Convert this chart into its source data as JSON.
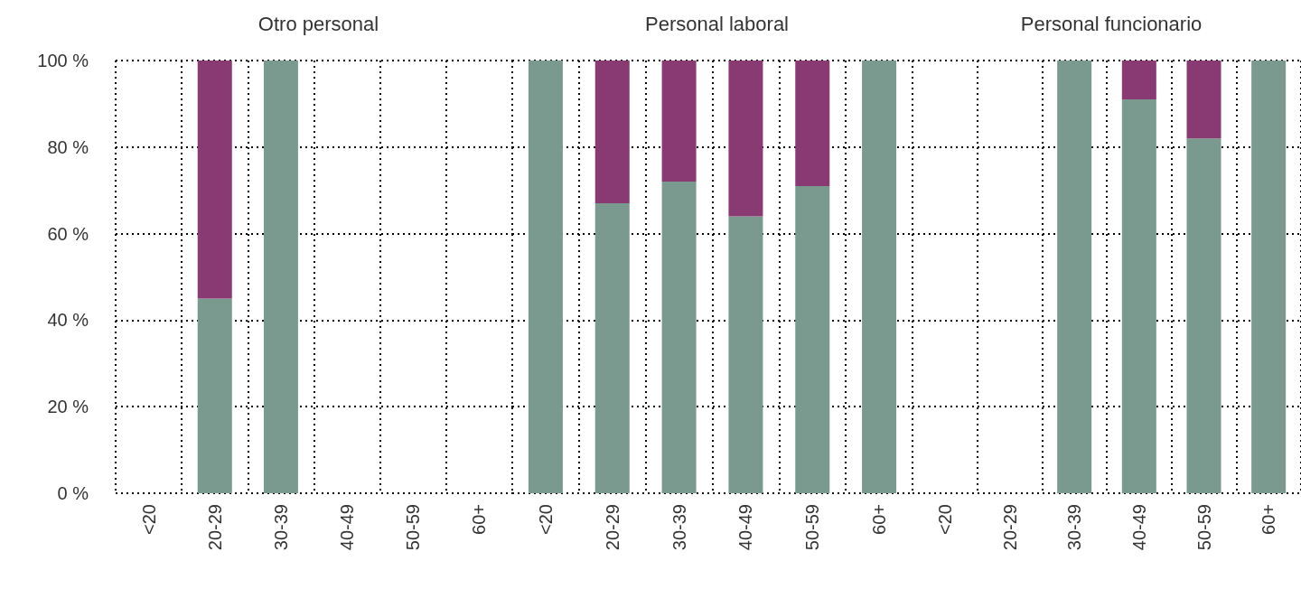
{
  "chart_data": [
    {
      "type": "bar",
      "stacked": true,
      "title": "Otro personal",
      "categories": [
        "<20",
        "20-29",
        "30-39",
        "40-49",
        "50-59",
        "60+"
      ],
      "series": [
        {
          "color": "#7a998f",
          "values": [
            null,
            45,
            100,
            null,
            null,
            null
          ]
        },
        {
          "color": "#8a3a72",
          "values": [
            null,
            55,
            null,
            null,
            null,
            null
          ]
        }
      ],
      "ylim": [
        0,
        100
      ],
      "yticks": [
        {
          "value": 0,
          "label": "0 %"
        },
        {
          "value": 20,
          "label": "20 %"
        },
        {
          "value": 40,
          "label": "40 %"
        },
        {
          "value": 60,
          "label": "60 %"
        },
        {
          "value": 80,
          "label": "80 %"
        },
        {
          "value": 100,
          "label": "100 %"
        }
      ],
      "grid": true
    },
    {
      "type": "bar",
      "stacked": true,
      "title": "Personal laboral",
      "categories": [
        "<20",
        "20-29",
        "30-39",
        "40-49",
        "50-59",
        "60+"
      ],
      "series": [
        {
          "color": "#7a998f",
          "values": [
            100,
            67,
            72,
            64,
            71,
            100
          ]
        },
        {
          "color": "#8a3a72",
          "values": [
            null,
            33,
            28,
            36,
            29,
            null
          ]
        }
      ],
      "ylim": [
        0,
        100
      ],
      "yticks": [
        {
          "value": 0,
          "label": null
        },
        {
          "value": 20,
          "label": null
        },
        {
          "value": 40,
          "label": null
        },
        {
          "value": 60,
          "label": null
        },
        {
          "value": 80,
          "label": null
        },
        {
          "value": 100,
          "label": null
        }
      ],
      "grid": true,
      "tick_labels": "x"
    },
    {
      "type": "bar",
      "stacked": true,
      "title": "Personal funcionario",
      "categories": [
        "<20",
        "20-29",
        "30-39",
        "40-49",
        "50-59",
        "60+"
      ],
      "series": [
        {
          "color": "#7a998f",
          "values": [
            null,
            null,
            100,
            91,
            82,
            100
          ]
        },
        {
          "color": "#8a3a72",
          "values": [
            null,
            null,
            null,
            9,
            18,
            null
          ]
        }
      ],
      "ylim": [
        0,
        100
      ],
      "yticks": [
        {
          "value": 0,
          "label": null
        },
        {
          "value": 20,
          "label": null
        },
        {
          "value": 40,
          "label": null
        },
        {
          "value": 60,
          "label": null
        },
        {
          "value": 80,
          "label": null
        },
        {
          "value": 100,
          "label": null
        }
      ],
      "grid": true,
      "tick_labels": "x"
    }
  ]
}
